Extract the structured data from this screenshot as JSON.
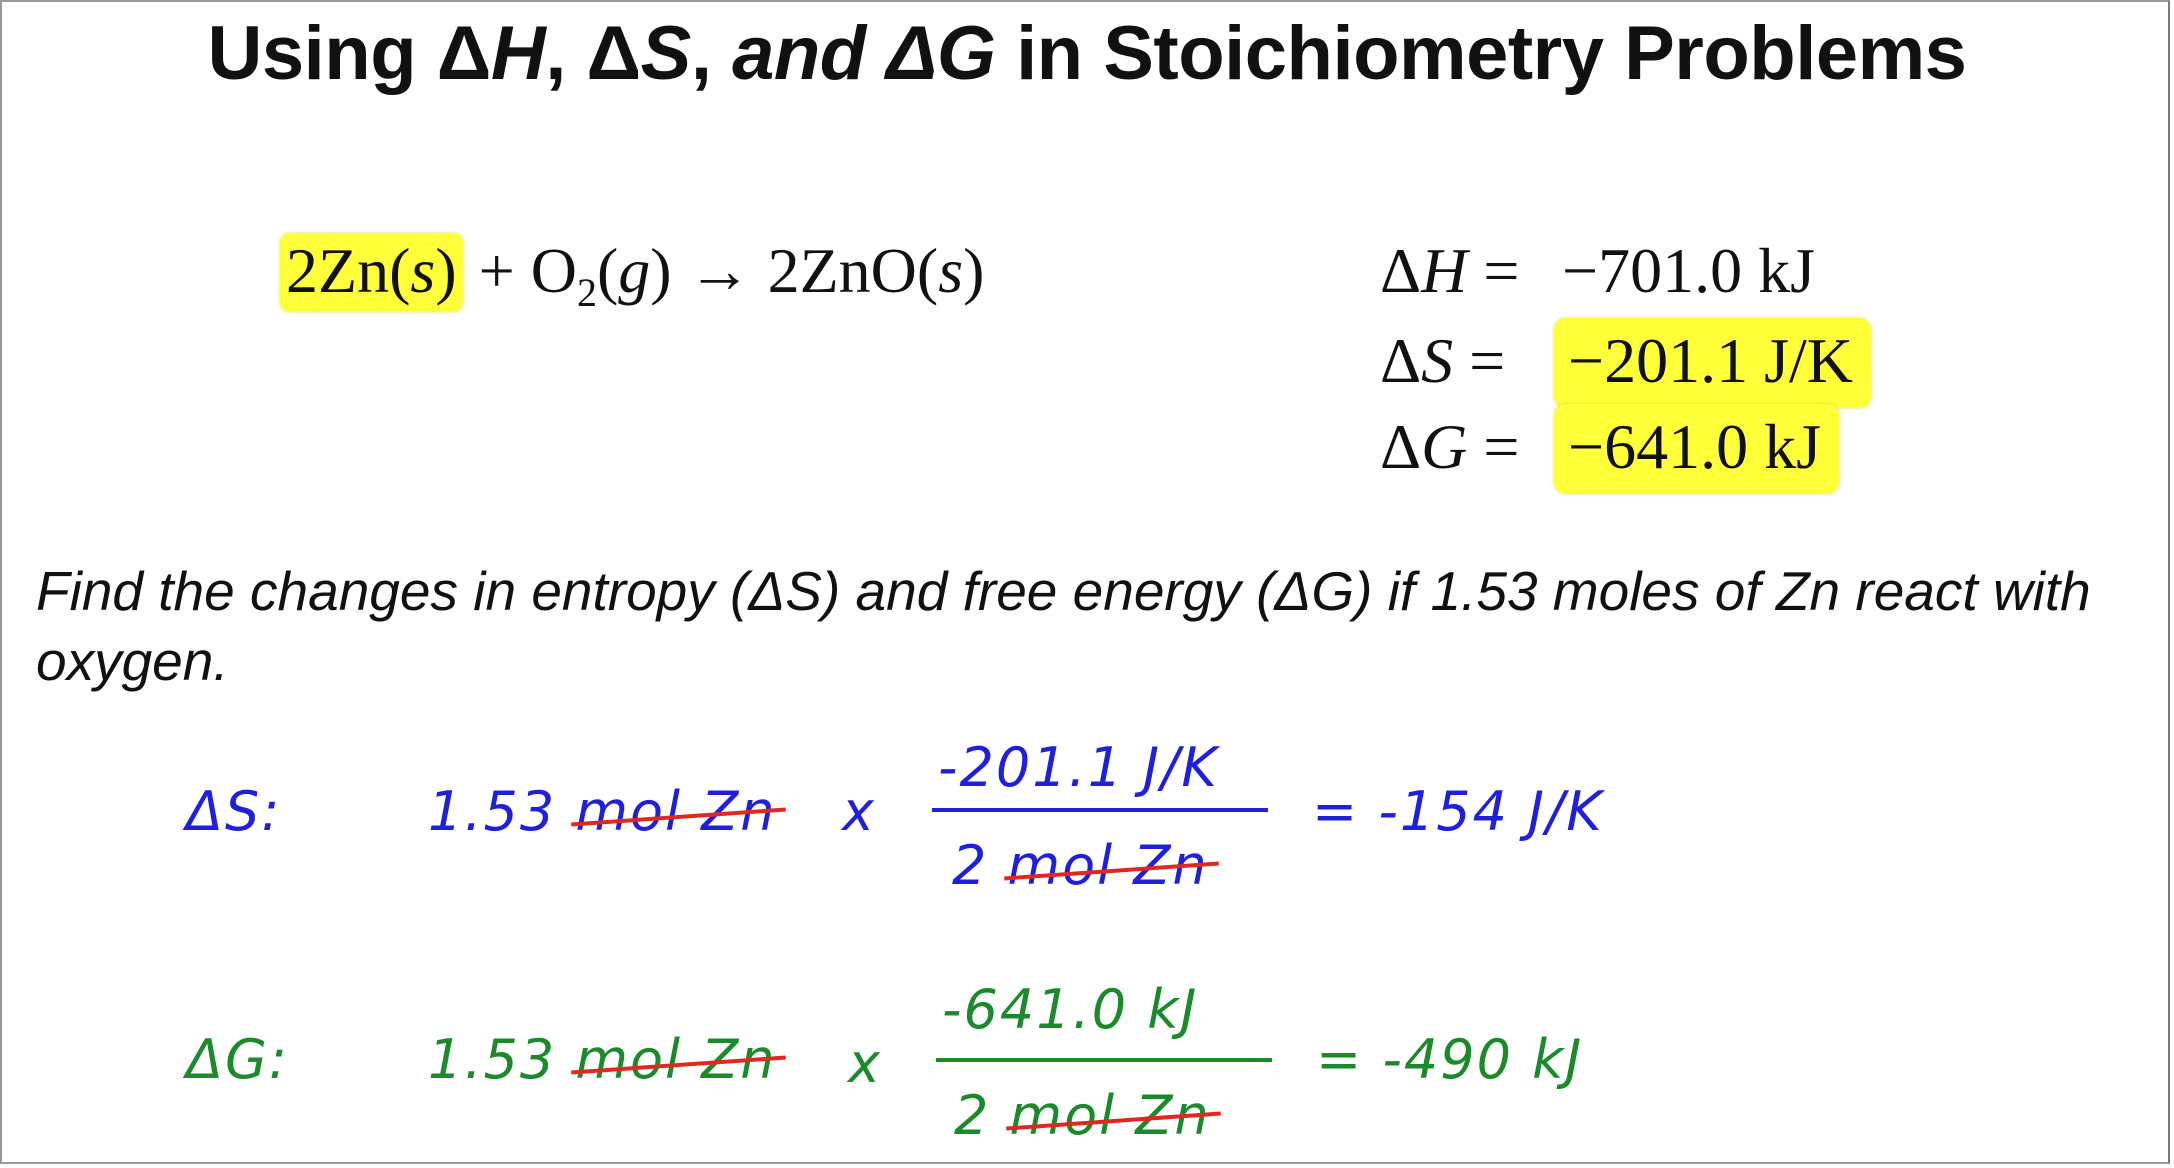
{
  "title": {
    "part1": "Using Δ",
    "h": "H",
    "part2": ", Δ",
    "s": "S",
    "part3": ", ",
    "and_g": "and ΔG",
    "part4": " in Stoichiometry Problems"
  },
  "equation": {
    "zn": "2Zn(",
    "zn_state": "s",
    "zn_close": ")",
    "plus_o": " + O",
    "o_sub": "2",
    "o_state_open": "(",
    "o_state": "g",
    "o_state_close": ")",
    "arrow": " → 2ZnO(",
    "zno_state": "s",
    "zno_close": ")"
  },
  "thermo": {
    "dh_delta": "Δ",
    "dh_sym": "H",
    "dh_eq": " =",
    "dh_val": "−701.0 kJ",
    "ds_delta": "Δ",
    "ds_sym": "S",
    "ds_eq": " =",
    "ds_val": "−201.1 J/K",
    "dg_delta": "Δ",
    "dg_sym": "G",
    "dg_eq": " =",
    "dg_val": "−641.0 kJ"
  },
  "question": "Find the changes in entropy (ΔS) and free energy (ΔG) if 1.53 moles of Zn react with oxygen.",
  "work_s": {
    "label": "ΔS:",
    "amount": "1.53",
    "unit": "mol Zn",
    "times": "x",
    "num": "-201.1 J/K",
    "den_num": "2",
    "den_unit": "mol Zn",
    "result": "= -154 J/K"
  },
  "work_g": {
    "label": "ΔG:",
    "amount": "1.53",
    "unit": "mol Zn",
    "times": "x",
    "num": "-641.0 kJ",
    "den_num": "2",
    "den_unit": "mol Zn",
    "result": "= -490 kJ"
  },
  "colors": {
    "highlight": "#ffff3a",
    "ink_blue": "#1f1fe0",
    "ink_green": "#1a8a2a",
    "strike_red": "#e0281e"
  }
}
